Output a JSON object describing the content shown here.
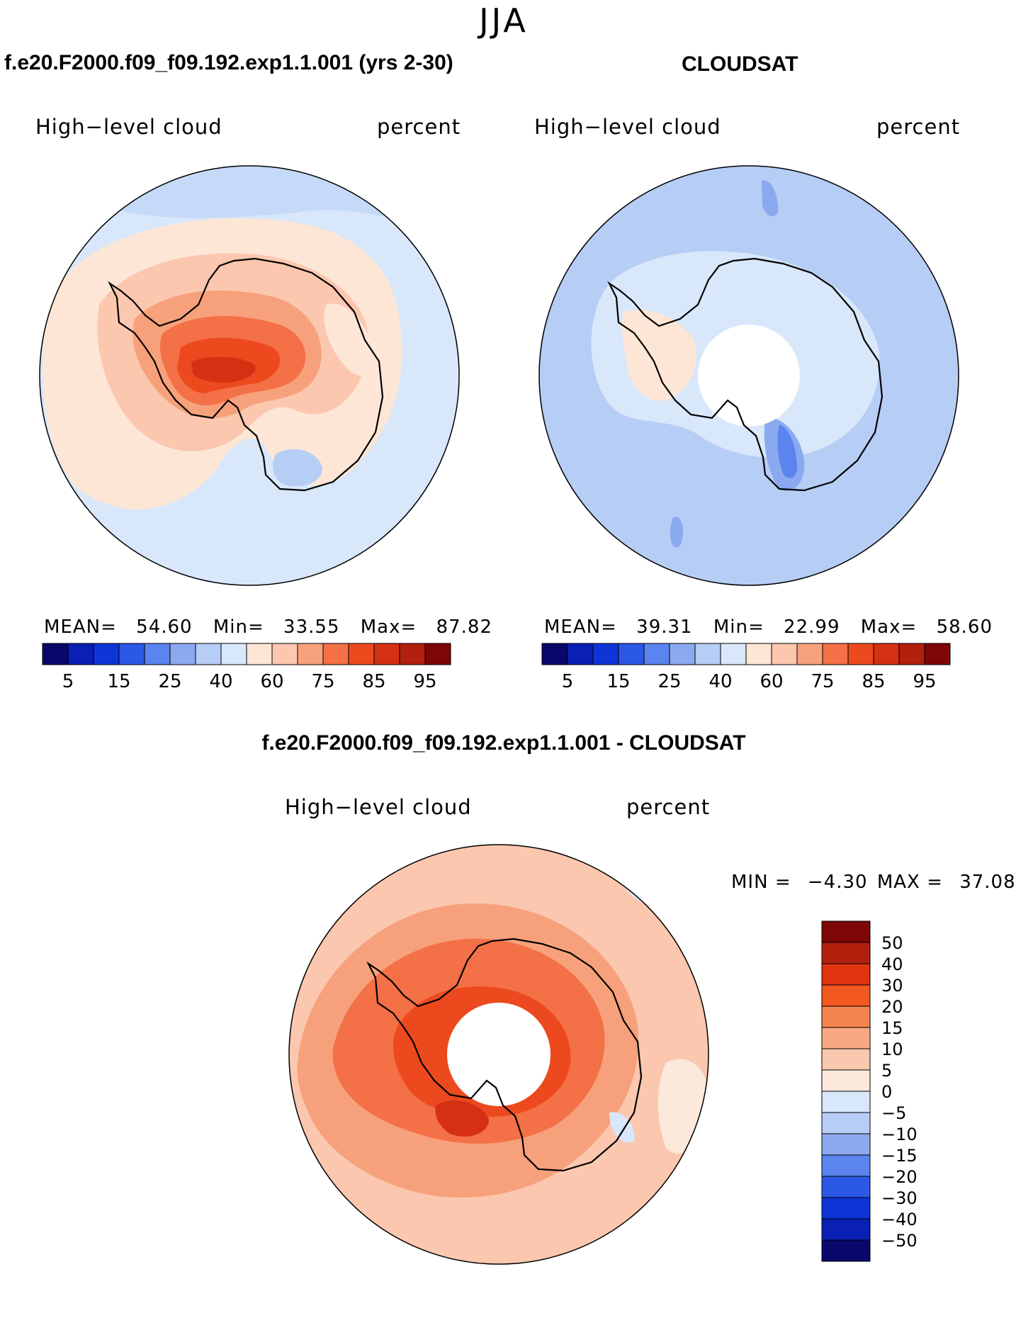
{
  "season": "JJA",
  "panels": {
    "model": {
      "heading": "f.e20.F2000.f09_f09.192.exp1.1.001 (yrs 2-30)",
      "left_label": "High−level cloud",
      "right_label": "percent",
      "stats": {
        "mean_label": "MEAN=",
        "mean": "54.60",
        "min_label": "Min=",
        "min": "33.55",
        "max_label": "Max=",
        "max": "87.82"
      }
    },
    "obs": {
      "heading": "CLOUDSAT",
      "left_label": "High−level cloud",
      "right_label": "percent",
      "stats": {
        "mean_label": "MEAN=",
        "mean": "39.31",
        "min_label": "Min=",
        "min": "22.99",
        "max_label": "Max=",
        "max": "58.60"
      }
    },
    "diff": {
      "heading": "f.e20.F2000.f09_f09.192.exp1.1.001 - CLOUDSAT",
      "left_label": "High−level cloud",
      "right_label": "percent",
      "stats": {
        "min_label": "MIN =",
        "min": "−4.30",
        "max_label": "MAX =",
        "max": "37.08"
      }
    }
  },
  "colorbar_main": {
    "colors": [
      "#08086b",
      "#0a1fb4",
      "#0d35d6",
      "#2c58e6",
      "#5c84ee",
      "#8ba9ef",
      "#b6cdf5",
      "#d8e7fa",
      "#fde6d6",
      "#fbc7ae",
      "#f7a17c",
      "#f47046",
      "#ec4a1e",
      "#d63013",
      "#b3200d",
      "#7e0606"
    ],
    "tick_labels": [
      "5",
      "15",
      "25",
      "40",
      "60",
      "75",
      "85",
      "95"
    ]
  },
  "colorbar_diff": {
    "colors": [
      "#7e0606",
      "#b3200d",
      "#e0350f",
      "#f2581f",
      "#f58350",
      "#f8a883",
      "#fac8ae",
      "#fde9dc",
      "#d8e7fa",
      "#b6cdf5",
      "#8ba9ef",
      "#5c84ee",
      "#2c58e6",
      "#0d35d6",
      "#0a1fb4",
      "#08086b"
    ],
    "tick_labels": [
      "50",
      "40",
      "30",
      "20",
      "15",
      "10",
      "5",
      "0",
      "−5",
      "−10",
      "−15",
      "−20",
      "−30",
      "−40",
      "−50"
    ]
  }
}
